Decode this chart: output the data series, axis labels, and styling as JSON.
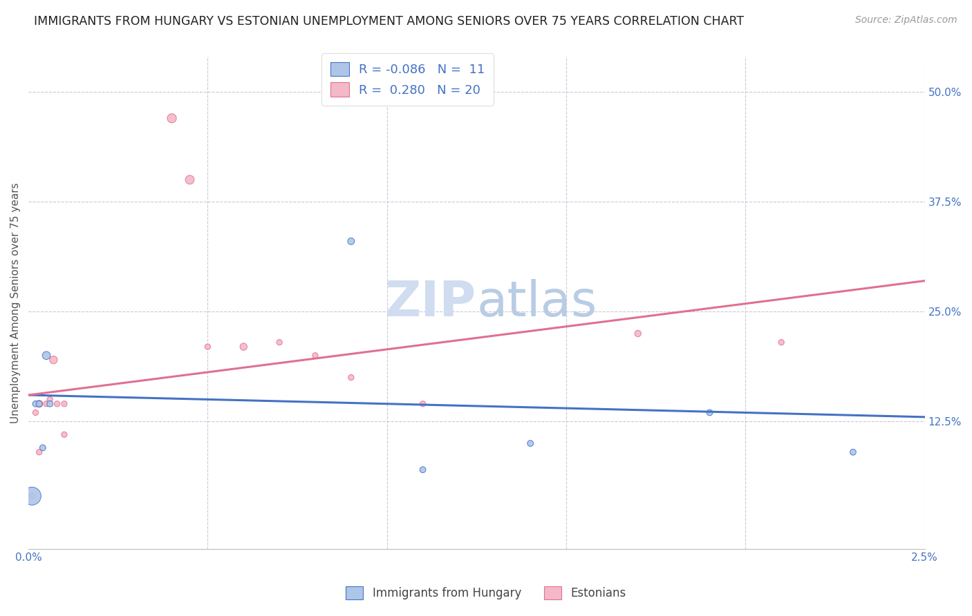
{
  "title": "IMMIGRANTS FROM HUNGARY VS ESTONIAN UNEMPLOYMENT AMONG SENIORS OVER 75 YEARS CORRELATION CHART",
  "source": "Source: ZipAtlas.com",
  "ylabel": "Unemployment Among Seniors over 75 years",
  "ylabel_right_ticks": [
    "50.0%",
    "37.5%",
    "25.0%",
    "12.5%"
  ],
  "watermark_zip": "ZIP",
  "watermark_atlas": "atlas",
  "legend_blue_r": "-0.086",
  "legend_blue_n": "11",
  "legend_pink_r": "0.280",
  "legend_pink_n": "20",
  "legend_label_blue": "Immigrants from Hungary",
  "legend_label_pink": "Estonians",
  "blue_color": "#adc6e8",
  "blue_line_color": "#4472c4",
  "pink_color": "#f4b8c8",
  "pink_line_color": "#e07090",
  "xlim": [
    0.0,
    0.025
  ],
  "ylim": [
    -0.02,
    0.54
  ],
  "blue_points_x": [
    0.0001,
    0.0002,
    0.0003,
    0.0004,
    0.0005,
    0.0006,
    0.009,
    0.011,
    0.014,
    0.019,
    0.023
  ],
  "blue_points_y": [
    0.04,
    0.145,
    0.145,
    0.095,
    0.2,
    0.145,
    0.33,
    0.07,
    0.1,
    0.135,
    0.09
  ],
  "blue_sizes": [
    350,
    40,
    40,
    40,
    70,
    40,
    50,
    40,
    40,
    40,
    40
  ],
  "pink_points_x": [
    0.0001,
    0.0002,
    0.0003,
    0.0003,
    0.0005,
    0.0006,
    0.0007,
    0.0008,
    0.001,
    0.001,
    0.004,
    0.0045,
    0.005,
    0.006,
    0.007,
    0.008,
    0.009,
    0.011,
    0.017,
    0.021
  ],
  "pink_points_y": [
    0.04,
    0.135,
    0.09,
    0.145,
    0.145,
    0.15,
    0.195,
    0.145,
    0.145,
    0.11,
    0.47,
    0.4,
    0.21,
    0.21,
    0.215,
    0.2,
    0.175,
    0.145,
    0.225,
    0.215
  ],
  "pink_sizes": [
    35,
    35,
    35,
    55,
    35,
    35,
    65,
    35,
    35,
    35,
    90,
    85,
    35,
    55,
    35,
    35,
    35,
    35,
    45,
    35
  ],
  "blue_trend_x": [
    0.0,
    0.025
  ],
  "blue_trend_y": [
    0.155,
    0.13
  ],
  "pink_trend_x": [
    0.0,
    0.025
  ],
  "pink_trend_y": [
    0.155,
    0.285
  ],
  "grid_color": "#c8c8d8",
  "bg_color": "#ffffff",
  "title_fontsize": 12.5,
  "axis_label_fontsize": 11,
  "tick_fontsize": 11,
  "source_fontsize": 10
}
